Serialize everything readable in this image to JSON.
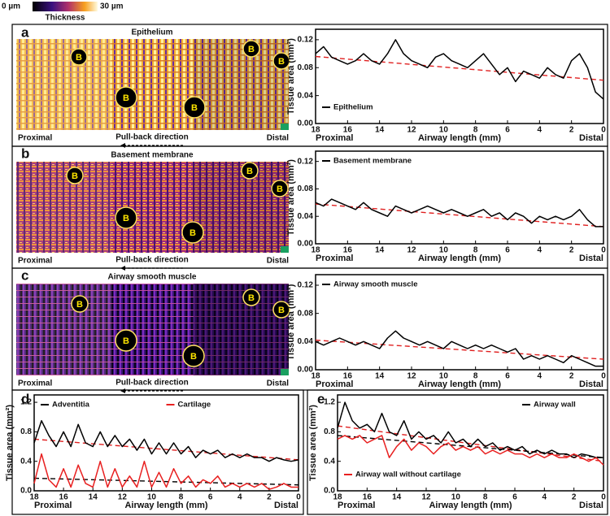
{
  "colorbar": {
    "min_label": "0 µm",
    "max_label": "30 µm",
    "title": "Thickness"
  },
  "panel_labels": [
    "a",
    "b",
    "c",
    "d",
    "e"
  ],
  "images": [
    {
      "title": "Epithelium",
      "markers": [
        "B",
        "B",
        "B",
        "B",
        "B"
      ],
      "left_label": "Proximal",
      "right_label": "Distal",
      "direction_label": "Pull-back direction"
    },
    {
      "title": "Basement membrane",
      "markers": [
        "B",
        "B",
        "B",
        "B",
        "B"
      ],
      "left_label": "Proximal",
      "right_label": "Distal",
      "direction_label": "Pull-back direction"
    },
    {
      "title": "Airway smooth muscle",
      "markers": [
        "B",
        "B",
        "B",
        "B",
        "B"
      ],
      "left_label": "Proximal",
      "right_label": "Distal",
      "direction_label": "Pull-back direction"
    }
  ],
  "chart_data": [
    {
      "type": "line",
      "xlabel": "Airway length (mm)",
      "ylabel": "Tissue area (mm²)",
      "x_left_label": "Proximal",
      "x_right_label": "Distal",
      "xlim": [
        18,
        0
      ],
      "xticks": [
        18,
        16,
        14,
        12,
        10,
        8,
        6,
        4,
        2,
        0
      ],
      "ylim": [
        0,
        0.135
      ],
      "yticks": [
        {
          "value": 0,
          "label": "0.00"
        },
        {
          "value": 0.04,
          "label": "0.04"
        },
        {
          "value": 0.08,
          "label": "0.08"
        },
        {
          "value": 0.12,
          "label": "0.12"
        }
      ],
      "x": [
        18,
        17.5,
        17,
        16.5,
        16,
        15.5,
        15,
        14.5,
        14,
        13.5,
        13,
        12.5,
        12,
        11.5,
        11,
        10.5,
        10,
        9.5,
        9,
        8.5,
        8,
        7.5,
        7,
        6.5,
        6,
        5.5,
        5,
        4.5,
        4,
        3.5,
        3,
        2.5,
        2,
        1.5,
        1,
        0.5,
        0
      ],
      "series": [
        {
          "name": "Epithelium",
          "color": "#000000",
          "legend": "lower left",
          "values": [
            0.1,
            0.11,
            0.095,
            0.09,
            0.085,
            0.09,
            0.1,
            0.09,
            0.085,
            0.1,
            0.12,
            0.1,
            0.09,
            0.085,
            0.08,
            0.095,
            0.1,
            0.09,
            0.085,
            0.08,
            0.09,
            0.1,
            0.085,
            0.07,
            0.08,
            0.06,
            0.075,
            0.07,
            0.065,
            0.08,
            0.07,
            0.065,
            0.09,
            0.1,
            0.08,
            0.045,
            0.035
          ],
          "trend": {
            "x": [
              18,
              0
            ],
            "values": [
              0.096,
              0.062
            ],
            "color": "#e02020"
          }
        }
      ]
    },
    {
      "type": "line",
      "xlabel": "Airway length (mm)",
      "ylabel": "Tissue area (mm²)",
      "x_left_label": "Proximal",
      "x_right_label": "Distal",
      "xlim": [
        18,
        0
      ],
      "xticks": [
        18,
        16,
        14,
        12,
        10,
        8,
        6,
        4,
        2,
        0
      ],
      "ylim": [
        0,
        0.135
      ],
      "yticks": [
        {
          "value": 0,
          "label": "0.00"
        },
        {
          "value": 0.04,
          "label": "0.04"
        },
        {
          "value": 0.08,
          "label": "0.08"
        },
        {
          "value": 0.12,
          "label": "0.12"
        }
      ],
      "x": [
        18,
        17.5,
        17,
        16.5,
        16,
        15.5,
        15,
        14.5,
        14,
        13.5,
        13,
        12.5,
        12,
        11.5,
        11,
        10.5,
        10,
        9.5,
        9,
        8.5,
        8,
        7.5,
        7,
        6.5,
        6,
        5.5,
        5,
        4.5,
        4,
        3.5,
        3,
        2.5,
        2,
        1.5,
        1,
        0.5,
        0
      ],
      "series": [
        {
          "name": "Basement membrane",
          "color": "#000000",
          "legend": "upper left",
          "values": [
            0.06,
            0.055,
            0.065,
            0.06,
            0.055,
            0.05,
            0.06,
            0.05,
            0.045,
            0.04,
            0.055,
            0.05,
            0.045,
            0.05,
            0.055,
            0.05,
            0.045,
            0.05,
            0.045,
            0.04,
            0.045,
            0.05,
            0.04,
            0.045,
            0.035,
            0.045,
            0.04,
            0.03,
            0.04,
            0.035,
            0.04,
            0.035,
            0.04,
            0.05,
            0.035,
            0.025,
            0.025
          ],
          "trend": {
            "x": [
              18,
              0
            ],
            "values": [
              0.058,
              0.025
            ],
            "color": "#e02020"
          }
        }
      ]
    },
    {
      "type": "line",
      "xlabel": "Airway length (mm)",
      "ylabel": "Tissue area (mm²)",
      "x_left_label": "Proximal",
      "x_right_label": "Distal",
      "xlim": [
        18,
        0
      ],
      "xticks": [
        18,
        16,
        14,
        12,
        10,
        8,
        6,
        4,
        2,
        0
      ],
      "ylim": [
        0,
        0.135
      ],
      "yticks": [
        {
          "value": 0,
          "label": "0.00"
        },
        {
          "value": 0.04,
          "label": "0.04"
        },
        {
          "value": 0.08,
          "label": "0.08"
        },
        {
          "value": 0.12,
          "label": "0.12"
        }
      ],
      "x": [
        18,
        17.5,
        17,
        16.5,
        16,
        15.5,
        15,
        14.5,
        14,
        13.5,
        13,
        12.5,
        12,
        11.5,
        11,
        10.5,
        10,
        9.5,
        9,
        8.5,
        8,
        7.5,
        7,
        6.5,
        6,
        5.5,
        5,
        4.5,
        4,
        3.5,
        3,
        2.5,
        2,
        1.5,
        1,
        0.5,
        0
      ],
      "series": [
        {
          "name": "Airway smooth muscle",
          "color": "#000000",
          "legend": "upper left",
          "values": [
            0.04,
            0.035,
            0.04,
            0.045,
            0.04,
            0.035,
            0.04,
            0.035,
            0.03,
            0.045,
            0.055,
            0.045,
            0.04,
            0.035,
            0.04,
            0.035,
            0.03,
            0.04,
            0.035,
            0.03,
            0.035,
            0.03,
            0.035,
            0.03,
            0.025,
            0.03,
            0.015,
            0.02,
            0.015,
            0.02,
            0.015,
            0.01,
            0.02,
            0.015,
            0.01,
            0.005,
            0.005
          ],
          "trend": {
            "x": [
              18,
              0
            ],
            "values": [
              0.042,
              0.015
            ],
            "color": "#e02020"
          }
        }
      ]
    },
    {
      "type": "line",
      "xlabel": "Airway length (mm)",
      "ylabel": "Tissue area (mm²)",
      "x_left_label": "Proximal",
      "x_right_label": "Distal",
      "xlim": [
        18,
        0
      ],
      "xticks": [
        18,
        16,
        14,
        12,
        10,
        8,
        6,
        4,
        2,
        0
      ],
      "ylim": [
        0,
        1.3
      ],
      "yticks": [
        {
          "value": 0,
          "label": "0.0"
        },
        {
          "value": 0.4,
          "label": "0.4"
        },
        {
          "value": 0.8,
          "label": "0.8"
        },
        {
          "value": 1.2,
          "label": "1.2"
        }
      ],
      "x": [
        18,
        17.5,
        17,
        16.5,
        16,
        15.5,
        15,
        14.5,
        14,
        13.5,
        13,
        12.5,
        12,
        11.5,
        11,
        10.5,
        10,
        9.5,
        9,
        8.5,
        8,
        7.5,
        7,
        6.5,
        6,
        5.5,
        5,
        4.5,
        4,
        3.5,
        3,
        2.5,
        2,
        1.5,
        1,
        0.5,
        0
      ],
      "series": [
        {
          "name": "Adventitia",
          "color": "#000000",
          "legend": "upper left",
          "values": [
            0.65,
            0.95,
            0.75,
            0.6,
            0.8,
            0.6,
            0.9,
            0.65,
            0.6,
            0.8,
            0.6,
            0.75,
            0.6,
            0.7,
            0.55,
            0.7,
            0.5,
            0.65,
            0.5,
            0.65,
            0.5,
            0.6,
            0.45,
            0.55,
            0.5,
            0.55,
            0.45,
            0.5,
            0.45,
            0.5,
            0.45,
            0.45,
            0.4,
            0.45,
            0.42,
            0.4,
            0.42
          ],
          "trend": {
            "x": [
              18,
              0
            ],
            "values": [
              0.7,
              0.42
            ],
            "color": "#e02020"
          }
        },
        {
          "name": "Cartilage",
          "color": "#e82020",
          "legend": "upper center",
          "values": [
            0.1,
            0.5,
            0.15,
            0.05,
            0.3,
            0.05,
            0.35,
            0.1,
            0.05,
            0.4,
            0.05,
            0.3,
            0.05,
            0.2,
            0.05,
            0.4,
            0.05,
            0.25,
            0.05,
            0.3,
            0.1,
            0.2,
            0.05,
            0.15,
            0.1,
            0.2,
            0.05,
            0.1,
            0.05,
            0.1,
            0.05,
            0.1,
            0.02,
            0.05,
            0.1,
            0.05,
            0.05
          ],
          "trend": {
            "x": [
              18,
              0
            ],
            "values": [
              0.17,
              0.08
            ],
            "color": "#000000"
          }
        }
      ]
    },
    {
      "type": "line",
      "xlabel": "Airway length (mm)",
      "ylabel": "Tissue area (mm²)",
      "x_left_label": "Proximal",
      "x_right_label": "Distal",
      "xlim": [
        18,
        0
      ],
      "xticks": [
        18,
        16,
        14,
        12,
        10,
        8,
        6,
        4,
        2,
        0
      ],
      "ylim": [
        0,
        1.3
      ],
      "yticks": [
        {
          "value": 0,
          "label": "0.0"
        },
        {
          "value": 0.4,
          "label": "0.4"
        },
        {
          "value": 0.8,
          "label": "0.8"
        },
        {
          "value": 1.2,
          "label": "1.2"
        }
      ],
      "x": [
        18,
        17.5,
        17,
        16.5,
        16,
        15.5,
        15,
        14.5,
        14,
        13.5,
        13,
        12.5,
        12,
        11.5,
        11,
        10.5,
        10,
        9.5,
        9,
        8.5,
        8,
        7.5,
        7,
        6.5,
        6,
        5.5,
        5,
        4.5,
        4,
        3.5,
        3,
        2.5,
        2,
        1.5,
        1,
        0.5,
        0
      ],
      "series": [
        {
          "name": "Airway wall",
          "color": "#000000",
          "legend": "upper right",
          "values": [
            0.85,
            1.2,
            0.95,
            0.85,
            0.9,
            0.8,
            1.05,
            0.8,
            0.75,
            0.95,
            0.7,
            0.8,
            0.7,
            0.75,
            0.65,
            0.8,
            0.65,
            0.7,
            0.6,
            0.7,
            0.6,
            0.65,
            0.55,
            0.6,
            0.55,
            0.6,
            0.5,
            0.55,
            0.5,
            0.55,
            0.5,
            0.5,
            0.45,
            0.5,
            0.48,
            0.45,
            0.45
          ],
          "trend": {
            "x": [
              18,
              0
            ],
            "values": [
              0.88,
              0.4
            ],
            "color": "#e02020"
          }
        },
        {
          "name": "Airway wall without cartilage",
          "color": "#e82020",
          "legend": "lower left",
          "values": [
            0.7,
            0.75,
            0.7,
            0.75,
            0.65,
            0.7,
            0.75,
            0.45,
            0.6,
            0.7,
            0.55,
            0.65,
            0.6,
            0.5,
            0.6,
            0.65,
            0.55,
            0.6,
            0.55,
            0.6,
            0.5,
            0.55,
            0.5,
            0.55,
            0.5,
            0.5,
            0.45,
            0.5,
            0.45,
            0.5,
            0.45,
            0.45,
            0.5,
            0.45,
            0.4,
            0.45,
            0.35
          ],
          "trend": {
            "x": [
              18,
              0
            ],
            "values": [
              0.75,
              0.45
            ],
            "color": "#000000"
          }
        }
      ]
    }
  ]
}
